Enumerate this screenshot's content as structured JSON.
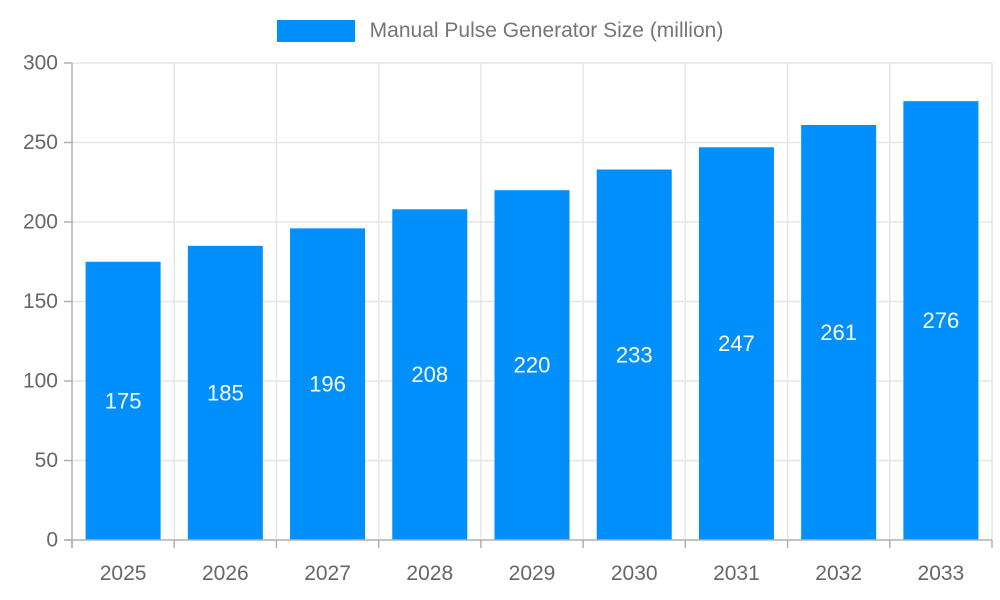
{
  "legend": {
    "label": "Manual Pulse Generator Size (million)"
  },
  "chart_data": {
    "type": "bar",
    "title": "Manual Pulse Generator Size (million)",
    "categories": [
      "2025",
      "2026",
      "2027",
      "2028",
      "2029",
      "2030",
      "2031",
      "2032",
      "2033"
    ],
    "series": [
      {
        "name": "Manual Pulse Generator Size (million)",
        "values": [
          175,
          185,
          196,
          208,
          220,
          233,
          247,
          261,
          276
        ]
      }
    ],
    "xlabel": "",
    "ylabel": "",
    "ylim": [
      0,
      300
    ],
    "yticks": [
      0,
      50,
      100,
      150,
      200,
      250,
      300
    ],
    "grid": true,
    "legend_position": "top-center",
    "value_labels_position": "center-inside",
    "colors": {
      "bar": "#008FFB",
      "value_label": "#FFFFFF",
      "axis_line": "#B0B0B0",
      "gridline": "#E6E6E6",
      "tick_label": "#666666",
      "legend_text": "#757575",
      "background": "#FFFFFF"
    }
  }
}
